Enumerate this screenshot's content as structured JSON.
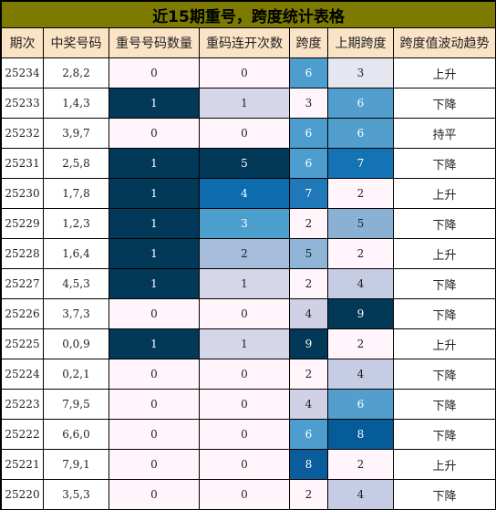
{
  "title": "近15期重号，跨度统计表格",
  "headers": [
    "期次",
    "中奖号码",
    "重号号码数量",
    "重码连开次数",
    "跨度",
    "上期跨度",
    "跨度值波动趋势"
  ],
  "rows": [
    {
      "period": "25234",
      "numbers": "2,8,2",
      "repeat_count": "0",
      "repeat_streak": "0",
      "span": "6",
      "prev_span": "3",
      "trend": "上升"
    },
    {
      "period": "25233",
      "numbers": "1,4,3",
      "repeat_count": "1",
      "repeat_streak": "1",
      "span": "3",
      "prev_span": "6",
      "trend": "下降"
    },
    {
      "period": "25232",
      "numbers": "3,9,7",
      "repeat_count": "0",
      "repeat_streak": "0",
      "span": "6",
      "prev_span": "6",
      "trend": "持平"
    },
    {
      "period": "25231",
      "numbers": "2,5,8",
      "repeat_count": "1",
      "repeat_streak": "5",
      "span": "6",
      "prev_span": "7",
      "trend": "下降"
    },
    {
      "period": "25230",
      "numbers": "1,7,8",
      "repeat_count": "1",
      "repeat_streak": "4",
      "span": "7",
      "prev_span": "2",
      "trend": "上升"
    },
    {
      "period": "25229",
      "numbers": "1,2,3",
      "repeat_count": "1",
      "repeat_streak": "3",
      "span": "2",
      "prev_span": "5",
      "trend": "下降"
    },
    {
      "period": "25228",
      "numbers": "1,6,4",
      "repeat_count": "1",
      "repeat_streak": "2",
      "span": "5",
      "prev_span": "2",
      "trend": "上升"
    },
    {
      "period": "25227",
      "numbers": "4,5,3",
      "repeat_count": "1",
      "repeat_streak": "1",
      "span": "2",
      "prev_span": "4",
      "trend": "下降"
    },
    {
      "period": "25226",
      "numbers": "3,7,3",
      "repeat_count": "0",
      "repeat_streak": "0",
      "span": "4",
      "prev_span": "9",
      "trend": "下降"
    },
    {
      "period": "25225",
      "numbers": "0,0,9",
      "repeat_count": "1",
      "repeat_streak": "1",
      "span": "9",
      "prev_span": "2",
      "trend": "上升"
    },
    {
      "period": "25224",
      "numbers": "0,2,1",
      "repeat_count": "0",
      "repeat_streak": "0",
      "span": "2",
      "prev_span": "4",
      "trend": "下降"
    },
    {
      "period": "25223",
      "numbers": "7,9,5",
      "repeat_count": "0",
      "repeat_streak": "0",
      "span": "4",
      "prev_span": "6",
      "trend": "下降"
    },
    {
      "period": "25222",
      "numbers": "6,6,0",
      "repeat_count": "0",
      "repeat_streak": "0",
      "span": "6",
      "prev_span": "8",
      "trend": "下降"
    },
    {
      "period": "25221",
      "numbers": "7,9,1",
      "repeat_count": "0",
      "repeat_streak": "0",
      "span": "8",
      "prev_span": "2",
      "trend": "上升"
    },
    {
      "period": "25220",
      "numbers": "3,5,3",
      "repeat_count": "0",
      "repeat_streak": "0",
      "span": "2",
      "prev_span": "4",
      "trend": "下降"
    }
  ],
  "colors": {
    "title_bg": "#7c7b00",
    "header_bg": "#fbe3c6",
    "repeat_count": {
      "0": "#fff5fb",
      "1": "#023858"
    },
    "repeat_streak": {
      "0": "#fff5fb",
      "1": "#d6d6e9",
      "2": "#a6bddb",
      "3": "#4c9fcc",
      "4": "#0d6cad",
      "5": "#023858"
    },
    "span": {
      "2": "#fff5fb",
      "3": "#fff5fb",
      "4": "#d0d1e6",
      "5": "#8fb4d7",
      "6": "#4d9ece",
      "7": "#1f78b7",
      "8": "#0a5d9a",
      "9": "#023858"
    },
    "prev_span": {
      "2": "#fff5fb",
      "3": "#e6e6f1",
      "4": "#c6cce3",
      "5": "#8ab1d4",
      "6": "#529ecd",
      "7": "#1473b5",
      "8": "#055c99",
      "9": "#023858"
    },
    "light_text": "#ffffff",
    "dark_text": "#222222"
  }
}
